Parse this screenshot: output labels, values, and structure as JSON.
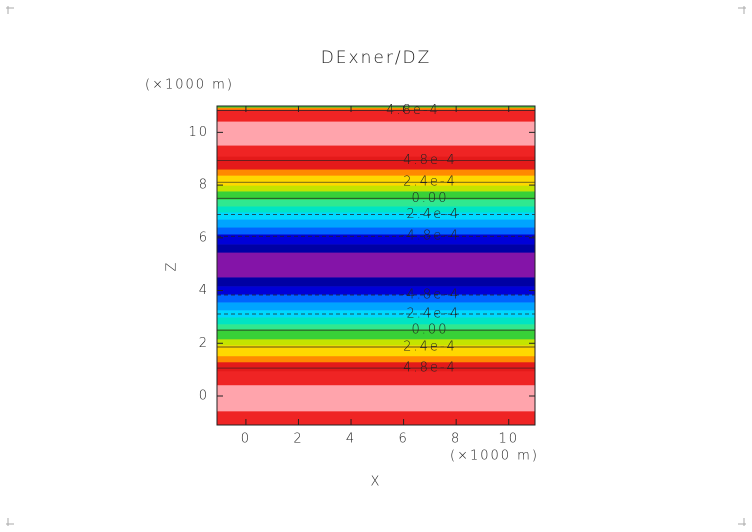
{
  "chart_data": {
    "type": "filled-contour",
    "title": "DExner/DZ",
    "x_label": "X",
    "y_label": "Z",
    "x_unit": "(×1000 m)",
    "y_unit": "(×1000 m)",
    "xlim": [
      -1.1,
      11
    ],
    "ylim": [
      -1.1,
      11
    ],
    "xticks": [
      0,
      2,
      4,
      6,
      8,
      10
    ],
    "yticks": [
      0,
      2,
      4,
      6,
      8,
      10
    ],
    "bands": {
      "z": [
        -1.1,
        -0.57,
        0.42,
        0.95,
        1.29,
        1.52,
        1.93,
        2.16,
        2.54,
        2.73,
        2.99,
        3.26,
        3.56,
        3.86,
        4.17,
        4.51,
        5.45,
        5.76,
        6.14,
        6.4,
        6.7,
        6.97,
        7.2,
        7.46,
        7.77,
        7.99,
        8.37,
        8.6,
        9.09,
        9.51,
        10.42,
        10.87,
        10.95,
        11
      ],
      "colors": [
        "#ef2424",
        "#ffa4ac",
        "#ef2424",
        "#e41a1a",
        "#ff8a00",
        "#ffd800",
        "#c4e400",
        "#38d038",
        "#30e890",
        "#00e4c4",
        "#00d8ff",
        "#00a4ff",
        "#0064ff",
        "#0000d8",
        "#0000a4",
        "#8414a8",
        "#0000a4",
        "#0000d8",
        "#0064ff",
        "#00a4ff",
        "#00d8ff",
        "#00e4c4",
        "#30e890",
        "#38d038",
        "#c4e400",
        "#ffd800",
        "#ff8a00",
        "#e41a1a",
        "#ef2424",
        "#ffa4ac",
        "#ef2424",
        "#ff8a00",
        "#38d038"
      ]
    },
    "contours": {
      "levels": [
        0.00048,
        0.00048,
        0.00024,
        0,
        -0.00024,
        -0.00048,
        -0.00048,
        -0.00024,
        0,
        0.00024,
        0.00048
      ],
      "level_labels": [
        "4.8e-4",
        "4.8e-4",
        "2.4e-4",
        "0.00",
        "-2.4e-4",
        "-4.8e-4",
        "-4.8e-4",
        "-2.4e-4",
        "0.00",
        "2.4e-4",
        "4.8e-4"
      ],
      "z": [
        10.83,
        8.94,
        8.11,
        7.5,
        6.89,
        6.06,
        3.83,
        3.11,
        2.5,
        1.86,
        1.06
      ]
    }
  }
}
